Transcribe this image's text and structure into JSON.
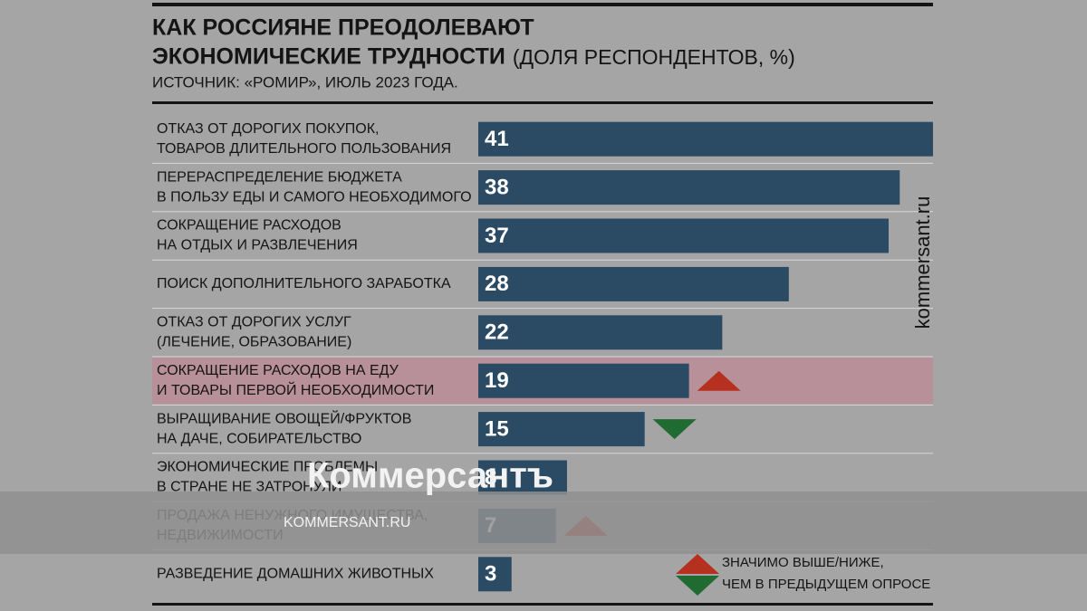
{
  "chart_data": {
    "type": "bar",
    "title_lines": [
      "КАК РОССИЯНЕ ПРЕОДОЛЕВАЮТ",
      "ЭКОНОМИЧЕСКИЕ ТРУДНОСТИ"
    ],
    "title_note": "(ДОЛЯ РЕСПОНДЕНТОВ, %)",
    "subtitle": "ИСТОЧНИК: «РОМИР», ИЮЛЬ 2023 ГОДА.",
    "categories": [
      [
        "ОТКАЗ ОТ ДОРОГИХ ПОКУПОК,",
        "ТОВАРОВ ДЛИТЕЛЬНОГО ПОЛЬЗОВАНИЯ"
      ],
      [
        "ПЕРЕРАСПРЕДЕЛЕНИЕ БЮДЖЕТА",
        "В ПОЛЬЗУ ЕДЫ И САМОГО НЕОБХОДИМОГО"
      ],
      [
        "СОКРАЩЕНИЕ РАСХОДОВ",
        "НА ОТДЫХ И РАЗВЛЕЧЕНИЯ"
      ],
      [
        "ПОИСК ДОПОЛНИТЕЛЬНОГО ЗАРАБОТКА"
      ],
      [
        "ОТКАЗ ОТ ДОРОГИХ УСЛУГ",
        "(ЛЕЧЕНИЕ, ОБРАЗОВАНИЕ)"
      ],
      [
        "СОКРАЩЕНИЕ РАСХОДОВ НА ЕДУ",
        "И ТОВАРЫ ПЕРВОЙ НЕОБХОДИМОСТИ"
      ],
      [
        "ВЫРАЩИВАНИЕ ОВОЩЕЙ/ФРУКТОВ",
        "НА ДАЧЕ, СОБИРАТЕЛЬСТВО"
      ],
      [
        "ЭКОНОМИЧЕСКИЕ ПРОБЛЕМЫ",
        "В СТРАНЕ НЕ ЗАТРОНУЛИ"
      ],
      [
        "ПРОДАЖА НЕНУЖНОГО ИМУЩЕСТВА,",
        "НЕДВИЖИМОСТИ"
      ],
      [
        "РАЗВЕДЕНИЕ ДОМАШНИХ ЖИВОТНЫХ"
      ]
    ],
    "values": [
      41,
      38,
      37,
      28,
      22,
      19,
      15,
      8,
      7,
      3
    ],
    "change": [
      null,
      null,
      null,
      null,
      null,
      "up",
      "down",
      null,
      "up",
      null
    ],
    "highlight": 5,
    "color": "#2b4a63",
    "highlight_color": "#b8909a",
    "up_color": "#b5301f",
    "down_color": "#1f6b32",
    "xlim": [
      0,
      41
    ],
    "legend_lines": [
      "ЗНАЧИМО ВЫШЕ/НИЖЕ,",
      "ЧЕМ В ПРЕДЫДУЩЕМ ОПРОСЕ"
    ]
  },
  "watermarks": {
    "vertical": "kommersant.ru",
    "logo": "Коммерсантъ",
    "site": "KOMMERSANT.RU"
  }
}
